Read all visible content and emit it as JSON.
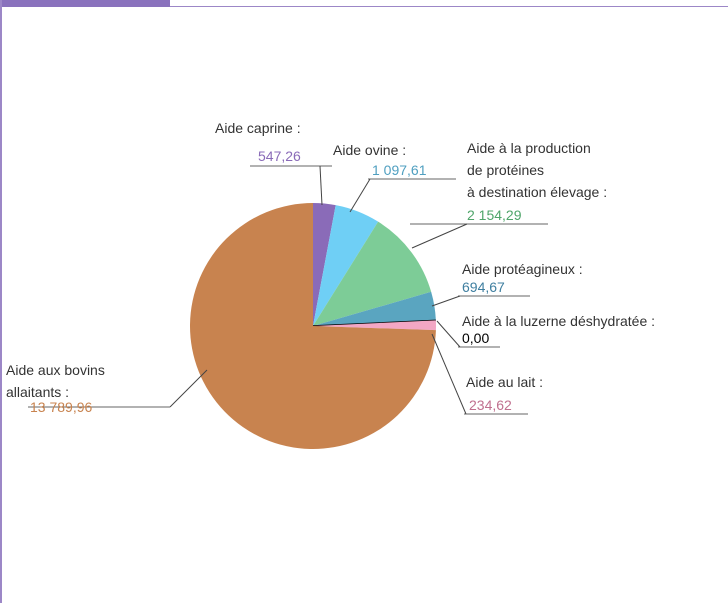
{
  "chart_data": {
    "type": "pie",
    "categories": [
      "Aide caprine :",
      "Aide ovine :",
      "Aide à la production\nde protéines\nà destination élevage :",
      "Aide protéagineux :",
      "Aide à la luzerne déshydratée :",
      "Aide au lait :",
      "Aide aux bovins\nallaitants :"
    ],
    "values": [
      547.26,
      1097.61,
      2154.29,
      694.67,
      0.0,
      234.62,
      13789.96
    ],
    "value_labels": [
      "547,26",
      "1 097,61",
      "2 154,29",
      "694,67",
      "0,00",
      "234,62",
      "13 789,96"
    ],
    "colors": [
      "#8a6bb8",
      "#6fcff5",
      "#7dcc97",
      "#5aa5c0",
      "#000000",
      "#f3a7c4",
      "#c8834f"
    ],
    "label_colors": [
      "#8a6bb8",
      "#4f9fc0",
      "#4fa56a",
      "#3f7fa0",
      "#000000",
      "#c0708f",
      "#c8834f"
    ]
  }
}
